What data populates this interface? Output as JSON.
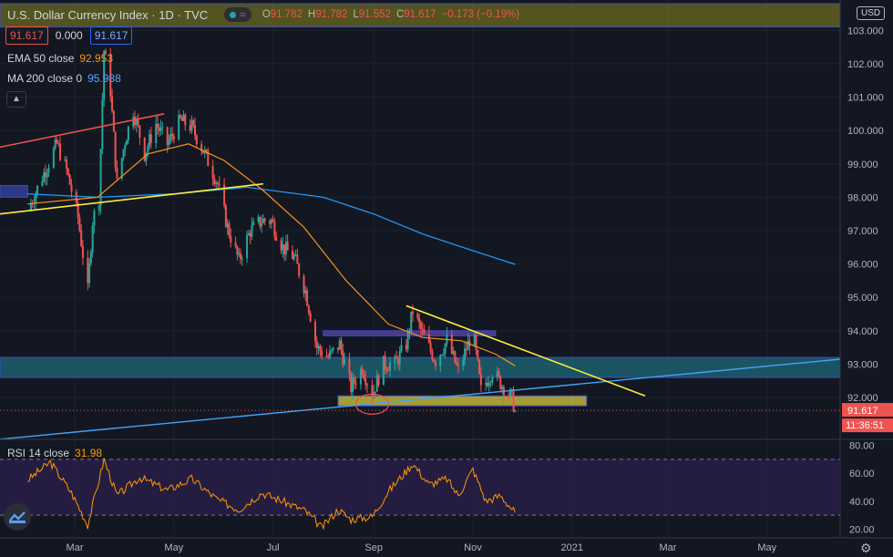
{
  "header": {
    "title": "U.S. Dollar Currency Index",
    "interval": "1D",
    "source": "TVC",
    "pill_symbol": "≈",
    "o_label": "O",
    "o": "91.782",
    "h_label": "H",
    "h": "91.782",
    "l_label": "L",
    "l": "91.552",
    "c_label": "C",
    "c": "91.617",
    "change": "−0.173 (−0.19%)"
  },
  "quote": {
    "sell": "91.617",
    "spread": "0.000",
    "buy": "91.617"
  },
  "indicators": {
    "ema_label": "EMA 50 close",
    "ema_value": "92.953",
    "ma_label": "MA 200 close 0",
    "ma_value": "95.988",
    "rsi_label": "RSI 14 close",
    "rsi_value": "31.98"
  },
  "currency": "USD",
  "price_tags": {
    "last": "91.617",
    "countdown": "11:36:51"
  },
  "colors": {
    "background": "#131722",
    "up": "#26a69a",
    "down": "#ef5350",
    "ema": "#f7931a",
    "ma": "#2196f3",
    "trendline": "#ffeb3b",
    "support_line": "#42a5f5",
    "rsi": "#ff9800",
    "rsi_band": "#2a1f4a"
  },
  "icons": {
    "collapse": "chevron-up-icon",
    "logo": "tradingview-logo-icon",
    "settings": "gear-icon"
  },
  "chart_data": {
    "type": "candlestick",
    "title": "U.S. Dollar Currency Index",
    "y_ticks": [
      "103.000",
      "102.000",
      "101.000",
      "100.000",
      "99.000",
      "98.000",
      "97.000",
      "96.000",
      "95.000",
      "94.000",
      "93.000",
      "92.000"
    ],
    "y_range": [
      90.8,
      103.8
    ],
    "x_ticks": [
      "Mar",
      "May",
      "Jul",
      "Sep",
      "Nov",
      "2021",
      "Mar",
      "May"
    ],
    "close_path": [
      [
        "2020-02-01",
        97.6
      ],
      [
        "2020-02-10",
        98.6
      ],
      [
        "2020-02-19",
        99.6
      ],
      [
        "2020-02-25",
        98.8
      ],
      [
        "2020-03-03",
        97.4
      ],
      [
        "2020-03-09",
        95.2
      ],
      [
        "2020-03-12",
        97.3
      ],
      [
        "2020-03-16",
        98.0
      ],
      [
        "2020-03-19",
        102.4
      ],
      [
        "2020-03-23",
        101.2
      ],
      [
        "2020-03-27",
        98.4
      ],
      [
        "2020-04-01",
        99.7
      ],
      [
        "2020-04-06",
        100.6
      ],
      [
        "2020-04-13",
        99.3
      ],
      [
        "2020-04-20",
        100.2
      ],
      [
        "2020-04-27",
        99.6
      ],
      [
        "2020-05-05",
        100.3
      ],
      [
        "2020-05-12",
        100.1
      ],
      [
        "2020-05-20",
        99.3
      ],
      [
        "2020-05-28",
        98.4
      ],
      [
        "2020-06-03",
        97.1
      ],
      [
        "2020-06-10",
        96.1
      ],
      [
        "2020-06-17",
        97.0
      ],
      [
        "2020-06-24",
        97.3
      ],
      [
        "2020-06-30",
        97.3
      ],
      [
        "2020-07-07",
        96.5
      ],
      [
        "2020-07-14",
        96.2
      ],
      [
        "2020-07-21",
        95.2
      ],
      [
        "2020-07-28",
        93.5
      ],
      [
        "2020-08-04",
        93.2
      ],
      [
        "2020-08-11",
        93.6
      ],
      [
        "2020-08-18",
        92.3
      ],
      [
        "2020-08-25",
        92.9
      ],
      [
        "2020-08-31",
        92.1
      ],
      [
        "2020-09-07",
        93.0
      ],
      [
        "2020-09-14",
        93.0
      ],
      [
        "2020-09-21",
        93.6
      ],
      [
        "2020-09-25",
        94.6
      ],
      [
        "2020-10-02",
        93.8
      ],
      [
        "2020-10-09",
        93.1
      ],
      [
        "2020-10-16",
        93.7
      ],
      [
        "2020-10-23",
        92.8
      ],
      [
        "2020-11-01",
        94.0
      ],
      [
        "2020-11-06",
        92.2
      ],
      [
        "2020-11-13",
        92.8
      ],
      [
        "2020-11-20",
        92.3
      ],
      [
        "2020-11-25",
        92.0
      ],
      [
        "2020-11-27",
        91.6
      ]
    ],
    "ema50": [
      [
        "2020-02-01",
        97.8
      ],
      [
        "2020-03-15",
        98.0
      ],
      [
        "2020-04-15",
        99.3
      ],
      [
        "2020-05-10",
        99.6
      ],
      [
        "2020-06-01",
        99.1
      ],
      [
        "2020-06-25",
        98.2
      ],
      [
        "2020-07-20",
        97.1
      ],
      [
        "2020-08-15",
        95.5
      ],
      [
        "2020-09-10",
        94.2
      ],
      [
        "2020-10-01",
        93.8
      ],
      [
        "2020-10-25",
        93.7
      ],
      [
        "2020-11-15",
        93.3
      ],
      [
        "2020-11-27",
        92.95
      ]
    ],
    "ma200": [
      [
        "2020-02-01",
        98.1
      ],
      [
        "2020-03-15",
        98.0
      ],
      [
        "2020-05-01",
        98.1
      ],
      [
        "2020-06-15",
        98.3
      ],
      [
        "2020-08-01",
        98.0
      ],
      [
        "2020-09-01",
        97.5
      ],
      [
        "2020-10-01",
        96.9
      ],
      [
        "2020-11-01",
        96.4
      ],
      [
        "2020-11-27",
        95.99
      ]
    ],
    "drawings": {
      "resistance_trend": [
        [
          "2020-09-21",
          94.75
        ],
        [
          "2021-02-15",
          92.05
        ]
      ],
      "support_trend": [
        [
          "2020-01-15",
          90.75
        ],
        [
          "2021-06-15",
          93.15
        ]
      ],
      "old_trend_red": [
        [
          "2020-01-15",
          99.5
        ],
        [
          "2020-04-25",
          100.5
        ]
      ],
      "old_trend_yellow": [
        [
          "2020-01-15",
          97.5
        ],
        [
          "2020-06-25",
          98.4
        ]
      ],
      "zones": [
        {
          "from": "2020-01-15",
          "to": "2021-06-15",
          "low": 103.1,
          "high": 103.8,
          "color": "#6b6a22"
        },
        {
          "from": "2020-01-15",
          "to": "2021-06-15",
          "low": 92.6,
          "high": 93.2,
          "color": "#1e6a7a"
        },
        {
          "from": "2020-08-01",
          "to": "2020-11-15",
          "low": 93.85,
          "high": 94.0,
          "color": "#5a4aa8"
        },
        {
          "from": "2020-08-10",
          "to": "2021-01-10",
          "low": 91.75,
          "high": 92.05,
          "color": "#d7c93a"
        },
        {
          "from": "2020-01-15",
          "to": "2020-02-01",
          "low": 98.0,
          "high": 98.35,
          "color": "#3a47a8"
        }
      ]
    },
    "rsi": {
      "y_ticks": [
        "80.00",
        "60.00",
        "40.00",
        "20.00"
      ],
      "y_range": [
        17,
        83
      ],
      "levels": [
        70,
        30
      ],
      "values": [
        [
          "2020-02-01",
          55
        ],
        [
          "2020-02-15",
          68
        ],
        [
          "2020-02-28",
          46
        ],
        [
          "2020-03-09",
          23
        ],
        [
          "2020-03-19",
          70
        ],
        [
          "2020-03-27",
          44
        ],
        [
          "2020-04-10",
          57
        ],
        [
          "2020-04-27",
          48
        ],
        [
          "2020-05-12",
          56
        ],
        [
          "2020-05-28",
          41
        ],
        [
          "2020-06-10",
          34
        ],
        [
          "2020-06-24",
          46
        ],
        [
          "2020-07-07",
          40
        ],
        [
          "2020-07-21",
          33
        ],
        [
          "2020-07-31",
          21
        ],
        [
          "2020-08-10",
          34
        ],
        [
          "2020-08-18",
          27
        ],
        [
          "2020-08-31",
          29
        ],
        [
          "2020-09-10",
          47
        ],
        [
          "2020-09-25",
          67
        ],
        [
          "2020-10-05",
          52
        ],
        [
          "2020-10-16",
          56
        ],
        [
          "2020-10-23",
          44
        ],
        [
          "2020-11-01",
          63
        ],
        [
          "2020-11-09",
          40
        ],
        [
          "2020-11-18",
          44
        ],
        [
          "2020-11-27",
          31.98
        ]
      ]
    }
  }
}
